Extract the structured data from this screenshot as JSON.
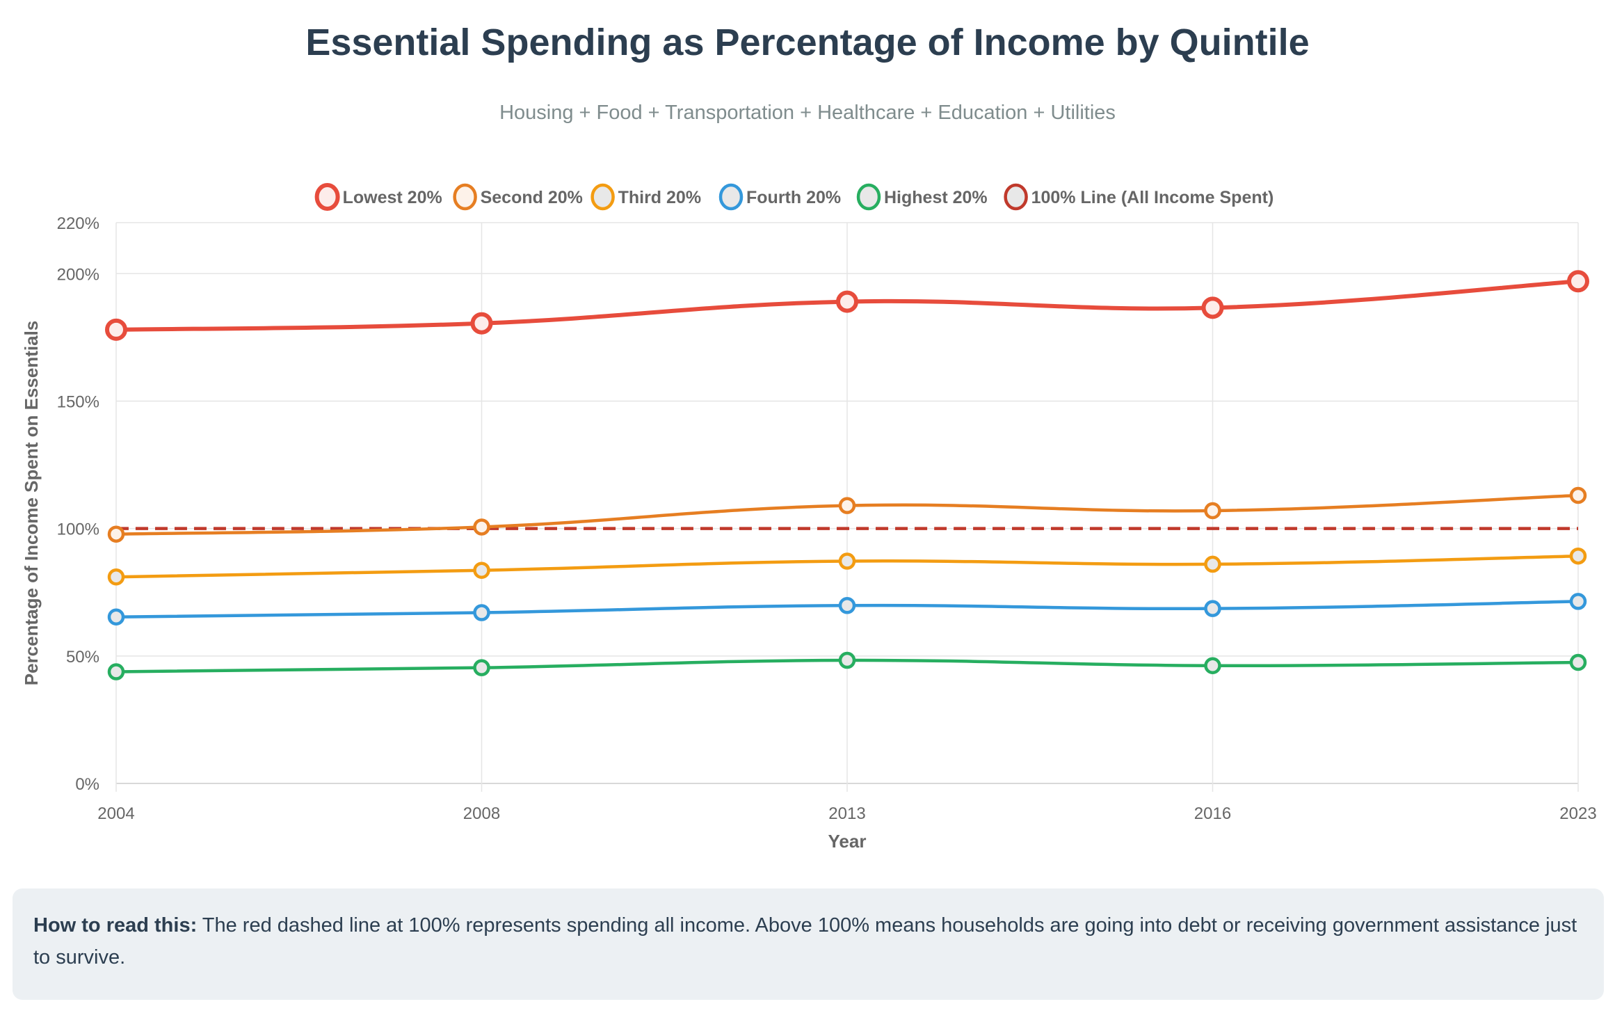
{
  "chart_data": {
    "type": "line",
    "title": "Essential Spending as Percentage of Income by Quintile",
    "subtitle": "Housing + Food + Transportation + Healthcare + Education + Utilities",
    "xlabel": "Year",
    "ylabel": "Percentage of Income Spent on Essentials",
    "categories": [
      "2004",
      "2008",
      "2013",
      "2016",
      "2023"
    ],
    "ylim": [
      0,
      220
    ],
    "yticks": [
      0,
      50,
      100,
      150,
      200,
      220
    ],
    "ytick_labels": [
      "0%",
      "50%",
      "100%",
      "150%",
      "200%",
      "220%"
    ],
    "grid": true,
    "legend_position": "top",
    "series": [
      {
        "name": "Lowest 20%",
        "color": "#e74c3c",
        "fill": "#fdecea",
        "values": [
          178,
          180.5,
          189,
          186.6,
          197
        ],
        "width": 6,
        "radius": 13
      },
      {
        "name": "Second 20%",
        "color": "#e67e22",
        "fill": "#fdf2e9",
        "values": [
          97.8,
          100.6,
          109,
          107,
          113
        ],
        "width": 4.5,
        "radius": 10
      },
      {
        "name": "Third 20%",
        "color": "#f39c12",
        "fill": "#e8e8e8",
        "values": [
          81,
          83.6,
          87.2,
          86,
          89.2
        ],
        "width": 4.5,
        "radius": 10
      },
      {
        "name": "Fourth 20%",
        "color": "#3498db",
        "fill": "#e8e8e8",
        "values": [
          65.3,
          67,
          69.8,
          68.6,
          71.4
        ],
        "width": 4.5,
        "radius": 10
      },
      {
        "name": "Highest 20%",
        "color": "#27ae60",
        "fill": "#e8e8e8",
        "values": [
          43.8,
          45.4,
          48.3,
          46.2,
          47.5
        ],
        "width": 4.5,
        "radius": 10
      },
      {
        "name": "100% Line (All Income Spent)",
        "color": "#c0392b",
        "fill": "#e8e8e8",
        "values": [
          100,
          100,
          100,
          100,
          100
        ],
        "width": 4.5,
        "radius": 0,
        "dashed": true
      }
    ]
  },
  "note": {
    "bold": "How to read this:",
    "text": " The red dashed line at 100% represents spending all income. Above 100% means households are going into debt or receiving government assistance just to survive."
  }
}
